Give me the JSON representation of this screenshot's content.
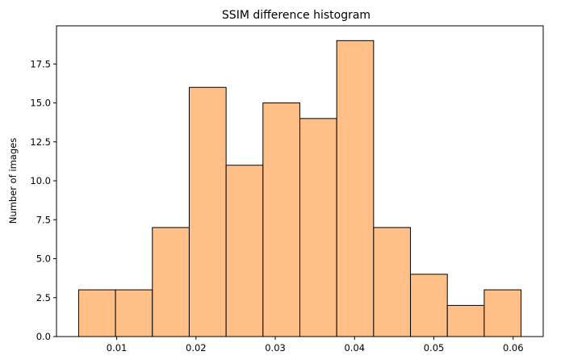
{
  "chart_data": {
    "type": "bar",
    "title": "SSIM difference histogram",
    "xlabel": "",
    "ylabel": "Number of images",
    "bin_edges": [
      0.0052,
      0.00985,
      0.0145,
      0.01915,
      0.0238,
      0.02845,
      0.0331,
      0.03775,
      0.0424,
      0.04705,
      0.0517,
      0.05635,
      0.061
    ],
    "counts": [
      3,
      3,
      7,
      16,
      11,
      15,
      14,
      19,
      7,
      4,
      2,
      3
    ],
    "xlim": [
      0.00241,
      0.06379
    ],
    "ylim": [
      0,
      19.95
    ],
    "xticks": [
      0.01,
      0.02,
      0.03,
      0.04,
      0.05,
      0.06
    ],
    "xtick_labels": [
      "0.01",
      "0.02",
      "0.03",
      "0.04",
      "0.05",
      "0.06"
    ],
    "yticks": [
      0,
      2.5,
      5,
      7.5,
      10,
      12.5,
      15,
      17.5
    ],
    "ytick_labels": [
      "0.0",
      "2.5",
      "5.0",
      "7.5",
      "10.0",
      "12.5",
      "15.0",
      "17.5"
    ],
    "bar_color": "#ffbf86",
    "edge_color": "#000000",
    "grid": false,
    "legend": "none"
  }
}
